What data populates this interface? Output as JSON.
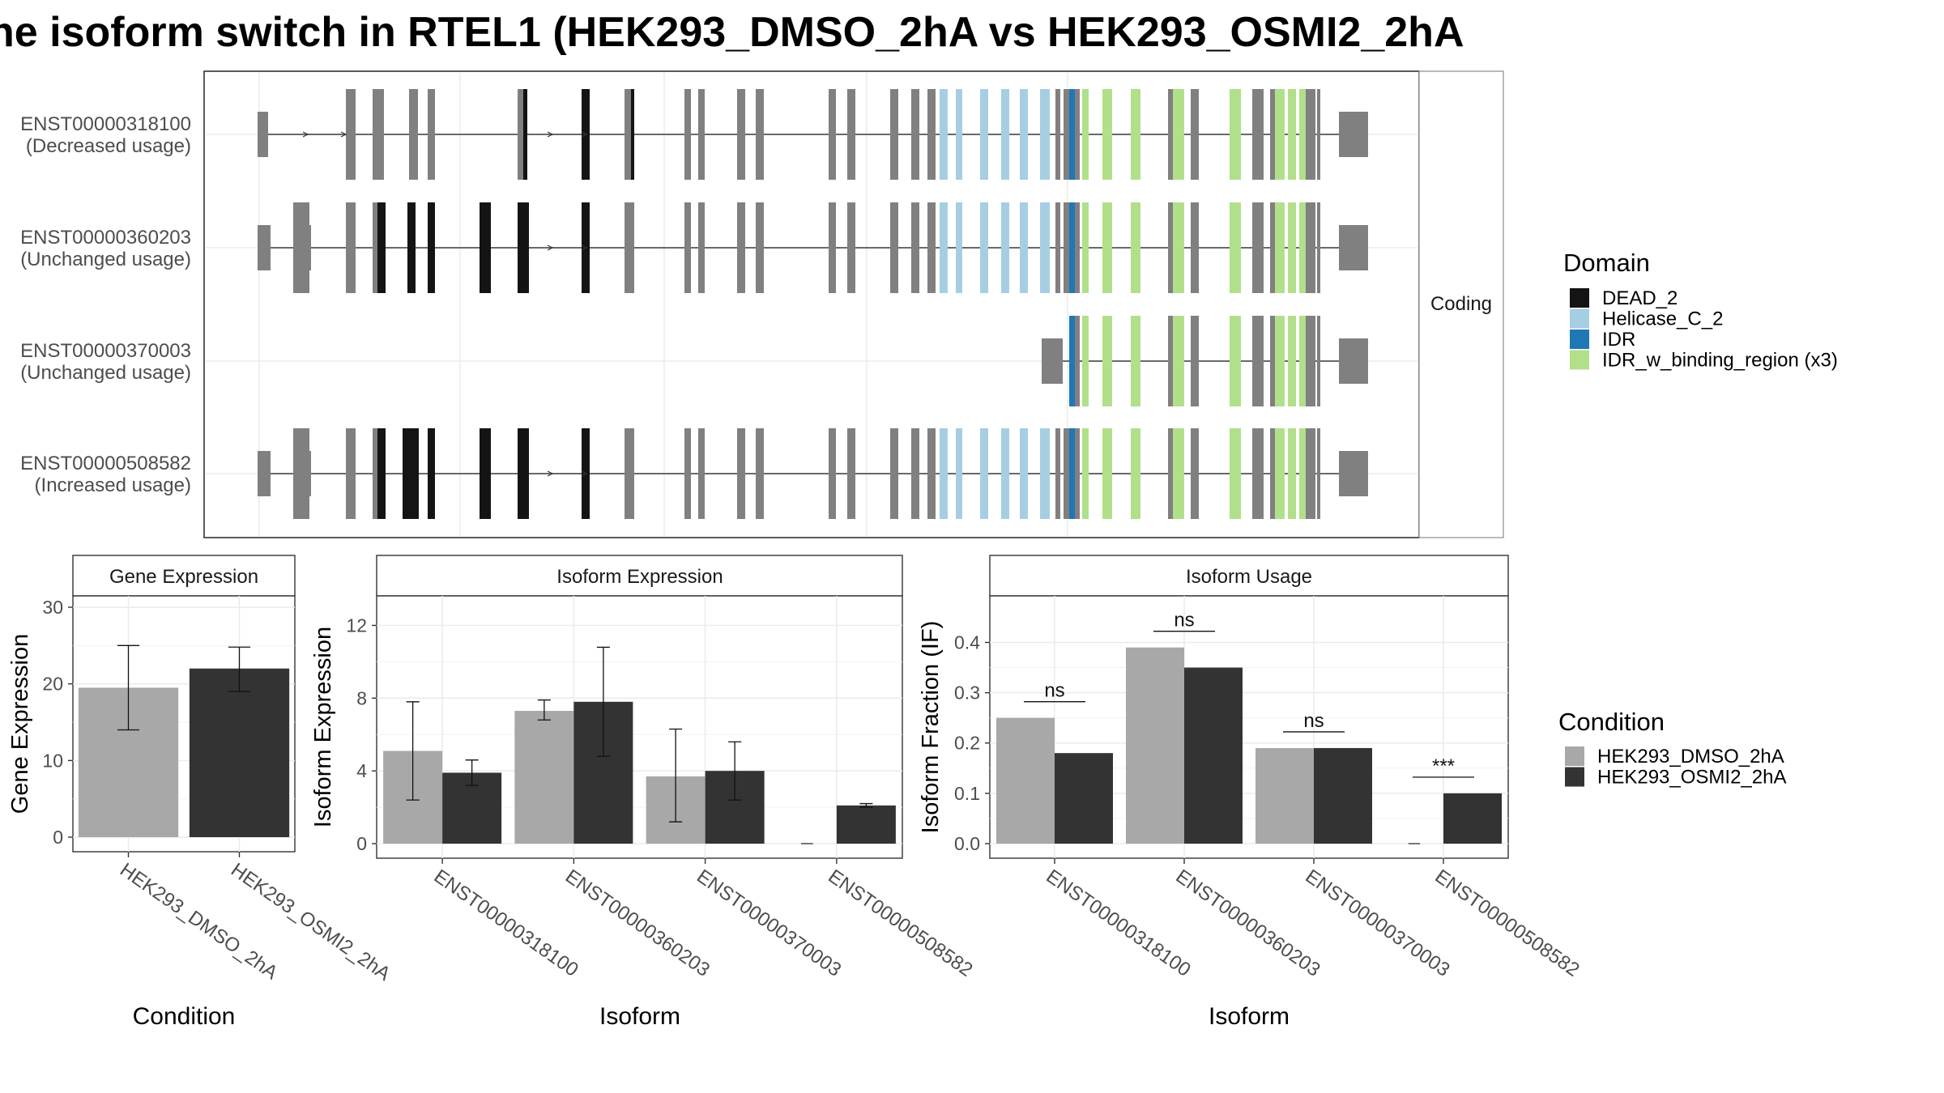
{
  "title": "he isoform switch in RTEL1 (HEK293_DMSO_2hA vs HEK293_OSMI2_2hA",
  "colors": {
    "exon": "#808080",
    "DEAD_2": "#141414",
    "Helicase_C_2": "#a6cee3",
    "IDR": "#1f78b4",
    "IDR_w_binding_region": "#b2df8a",
    "cond_dmso": "#a8a8a8",
    "cond_osmi": "#333333",
    "strip_bg": "#ffffff",
    "grid": "#ebebeb"
  },
  "structure": {
    "facet_label": "Coding",
    "transcripts": [
      {
        "id": "ENST00000318100",
        "usage": "(Decreased usage)"
      },
      {
        "id": "ENST00000360203",
        "usage": "(Unchanged usage)"
      },
      {
        "id": "ENST00000370003",
        "usage": "(Unchanged usage)"
      },
      {
        "id": "ENST00000508582",
        "usage": "(Increased usage)"
      }
    ]
  },
  "domain_legend": {
    "title": "Domain",
    "items": [
      {
        "label": "DEAD_2",
        "color": "#141414"
      },
      {
        "label": "Helicase_C_2",
        "color": "#a6cee3"
      },
      {
        "label": "IDR",
        "color": "#1f78b4"
      },
      {
        "label": "IDR_w_binding_region (x3)",
        "color": "#b2df8a"
      }
    ]
  },
  "condition_legend": {
    "title": "Condition",
    "items": [
      {
        "label": "HEK293_DMSO_2hA",
        "color": "#a8a8a8"
      },
      {
        "label": "HEK293_OSMI2_2hA",
        "color": "#333333"
      }
    ]
  },
  "chart_data": [
    {
      "type": "bar",
      "title": "Gene Expression",
      "xlabel": "Condition",
      "ylabel": "Gene Expression",
      "ylim": [
        0,
        30
      ],
      "yticks": [
        0,
        10,
        20,
        30
      ],
      "categories": [
        "HEK293_DMSO_2hA",
        "HEK293_OSMI2_2hA"
      ],
      "values": [
        19.5,
        22.0
      ],
      "errors": [
        [
          14.0,
          25.0
        ],
        [
          19.0,
          24.8
        ]
      ]
    },
    {
      "type": "bar",
      "title": "Isoform Expression",
      "xlabel": "Isoform",
      "ylabel": "Isoform Expression",
      "ylim": [
        0,
        13
      ],
      "yticks": [
        0,
        4,
        8,
        12
      ],
      "categories": [
        "ENST00000318100",
        "ENST00000360203",
        "ENST00000370003",
        "ENST00000508582"
      ],
      "series": [
        {
          "name": "HEK293_DMSO_2hA",
          "values": [
            5.1,
            7.3,
            3.7,
            0.0
          ],
          "errors": [
            [
              2.4,
              7.8
            ],
            [
              6.8,
              7.9
            ],
            [
              1.2,
              6.3
            ],
            [
              0.0,
              0.0
            ]
          ]
        },
        {
          "name": "HEK293_OSMI2_2hA",
          "values": [
            3.9,
            7.8,
            4.0,
            2.1
          ],
          "errors": [
            [
              3.2,
              4.6
            ],
            [
              4.8,
              10.8
            ],
            [
              2.4,
              5.6
            ],
            [
              2.0,
              2.2
            ]
          ]
        }
      ]
    },
    {
      "type": "bar",
      "title": "Isoform Usage",
      "xlabel": "Isoform",
      "ylabel": "Isoform Fraction (IF)",
      "ylim": [
        0,
        0.47
      ],
      "yticks": [
        0.0,
        0.1,
        0.2,
        0.3,
        0.4
      ],
      "ytick_labels": [
        "0.0",
        "0.1",
        "0.2",
        "0.3",
        "0.4"
      ],
      "categories": [
        "ENST00000318100",
        "ENST00000360203",
        "ENST00000370003",
        "ENST00000508582"
      ],
      "series": [
        {
          "name": "HEK293_DMSO_2hA",
          "values": [
            0.25,
            0.39,
            0.19,
            0.0
          ]
        },
        {
          "name": "HEK293_OSMI2_2hA",
          "values": [
            0.18,
            0.35,
            0.19,
            0.1
          ]
        }
      ],
      "significance": [
        "ns",
        "ns",
        "ns",
        "***"
      ]
    }
  ]
}
